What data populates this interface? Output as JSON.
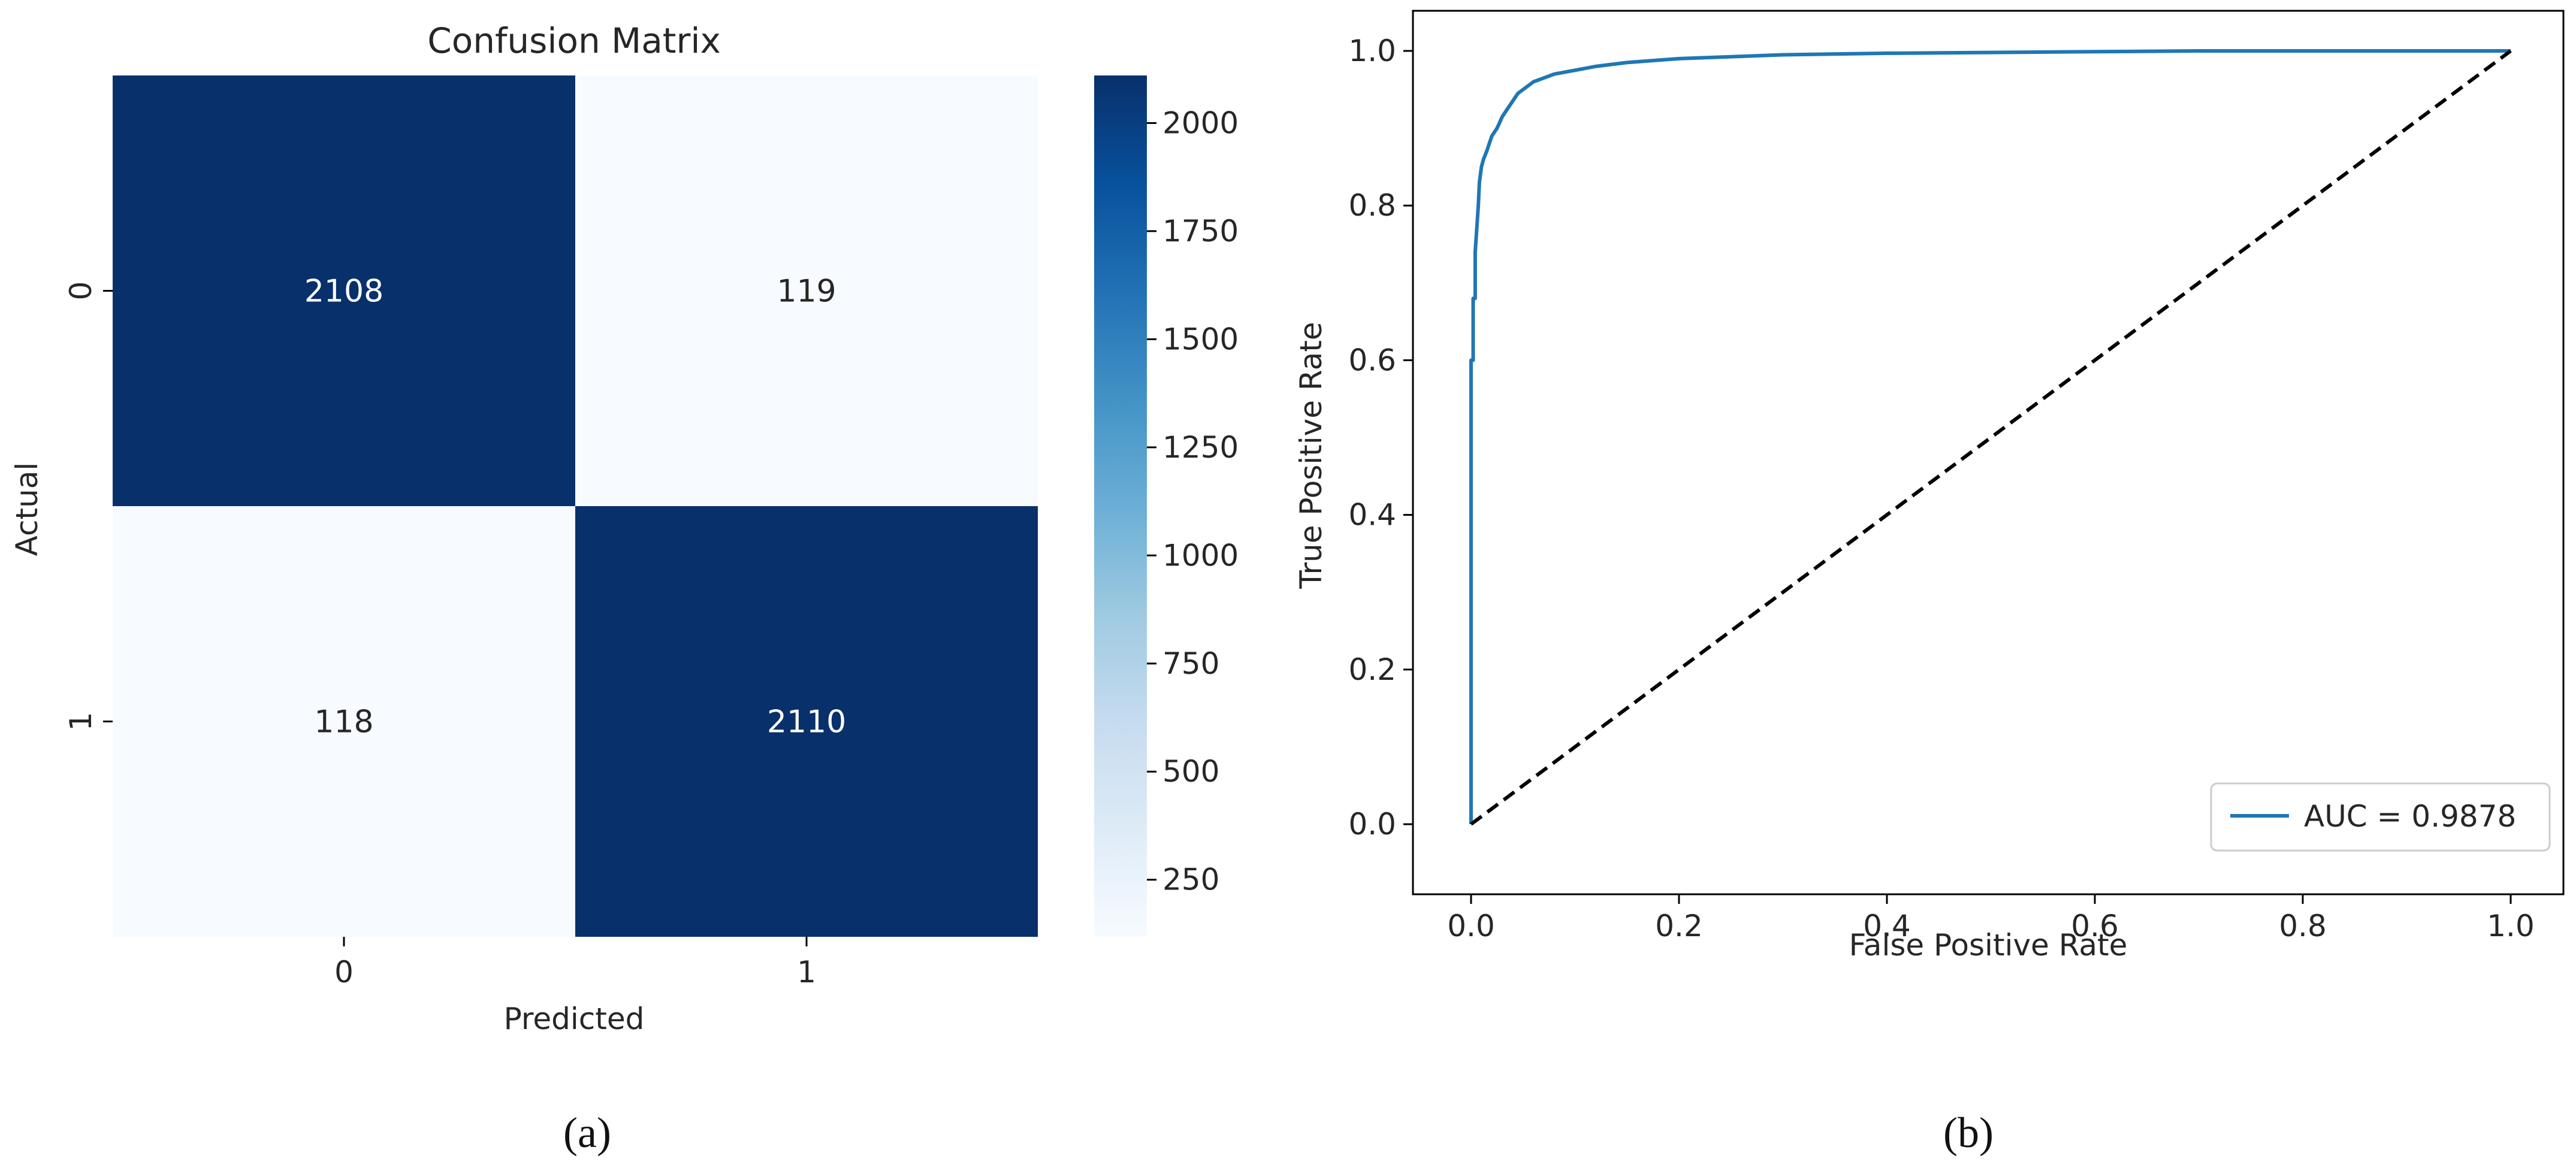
{
  "chart_data": [
    {
      "type": "heatmap",
      "title": "Confusion Matrix",
      "xlabel": "Predicted",
      "ylabel": "Actual",
      "x_categories": [
        "0",
        "1"
      ],
      "y_categories": [
        "0",
        "1"
      ],
      "values": [
        [
          2108,
          119
        ],
        [
          118,
          2110
        ]
      ],
      "colormap": "Blues",
      "colorbar_ticks": [
        250,
        500,
        750,
        1000,
        1250,
        1500,
        1750,
        2000
      ],
      "colorbar_range": [
        118,
        2110
      ],
      "caption_label": "a",
      "caption_text": "(a)"
    },
    {
      "type": "line",
      "title": "",
      "xlabel": "False Positive Rate",
      "ylabel": "True Positive Rate",
      "xlim": [
        0,
        1
      ],
      "ylim": [
        0,
        1
      ],
      "xticks": [
        "0.0",
        "0.2",
        "0.4",
        "0.6",
        "0.8",
        "1.0"
      ],
      "yticks": [
        "0.0",
        "0.2",
        "0.4",
        "0.6",
        "0.8",
        "1.0"
      ],
      "legend_position": "bottom-right",
      "series": [
        {
          "name": "AUC = 0.9878",
          "color": "#1f77b4",
          "x": [
            0,
            0,
            0.002,
            0.002,
            0.004,
            0.004,
            0.006,
            0.007,
            0.008,
            0.01,
            0.012,
            0.015,
            0.02,
            0.025,
            0.03,
            0.035,
            0.04,
            0.045,
            0.05,
            0.06,
            0.07,
            0.08,
            0.1,
            0.12,
            0.15,
            0.2,
            0.3,
            0.4,
            0.5,
            0.6,
            0.7,
            0.8,
            0.9,
            1.0
          ],
          "y": [
            0,
            0.6,
            0.6,
            0.68,
            0.68,
            0.74,
            0.78,
            0.8,
            0.83,
            0.85,
            0.86,
            0.87,
            0.89,
            0.9,
            0.915,
            0.925,
            0.935,
            0.945,
            0.95,
            0.96,
            0.965,
            0.97,
            0.975,
            0.98,
            0.985,
            0.99,
            0.995,
            0.997,
            0.998,
            0.999,
            1.0,
            1.0,
            1.0,
            1.0
          ]
        },
        {
          "name": "",
          "color": "#000000",
          "dashed": true,
          "x": [
            0,
            1
          ],
          "y": [
            0,
            1
          ]
        }
      ],
      "caption_label": "b",
      "caption_text": "(b)"
    }
  ]
}
